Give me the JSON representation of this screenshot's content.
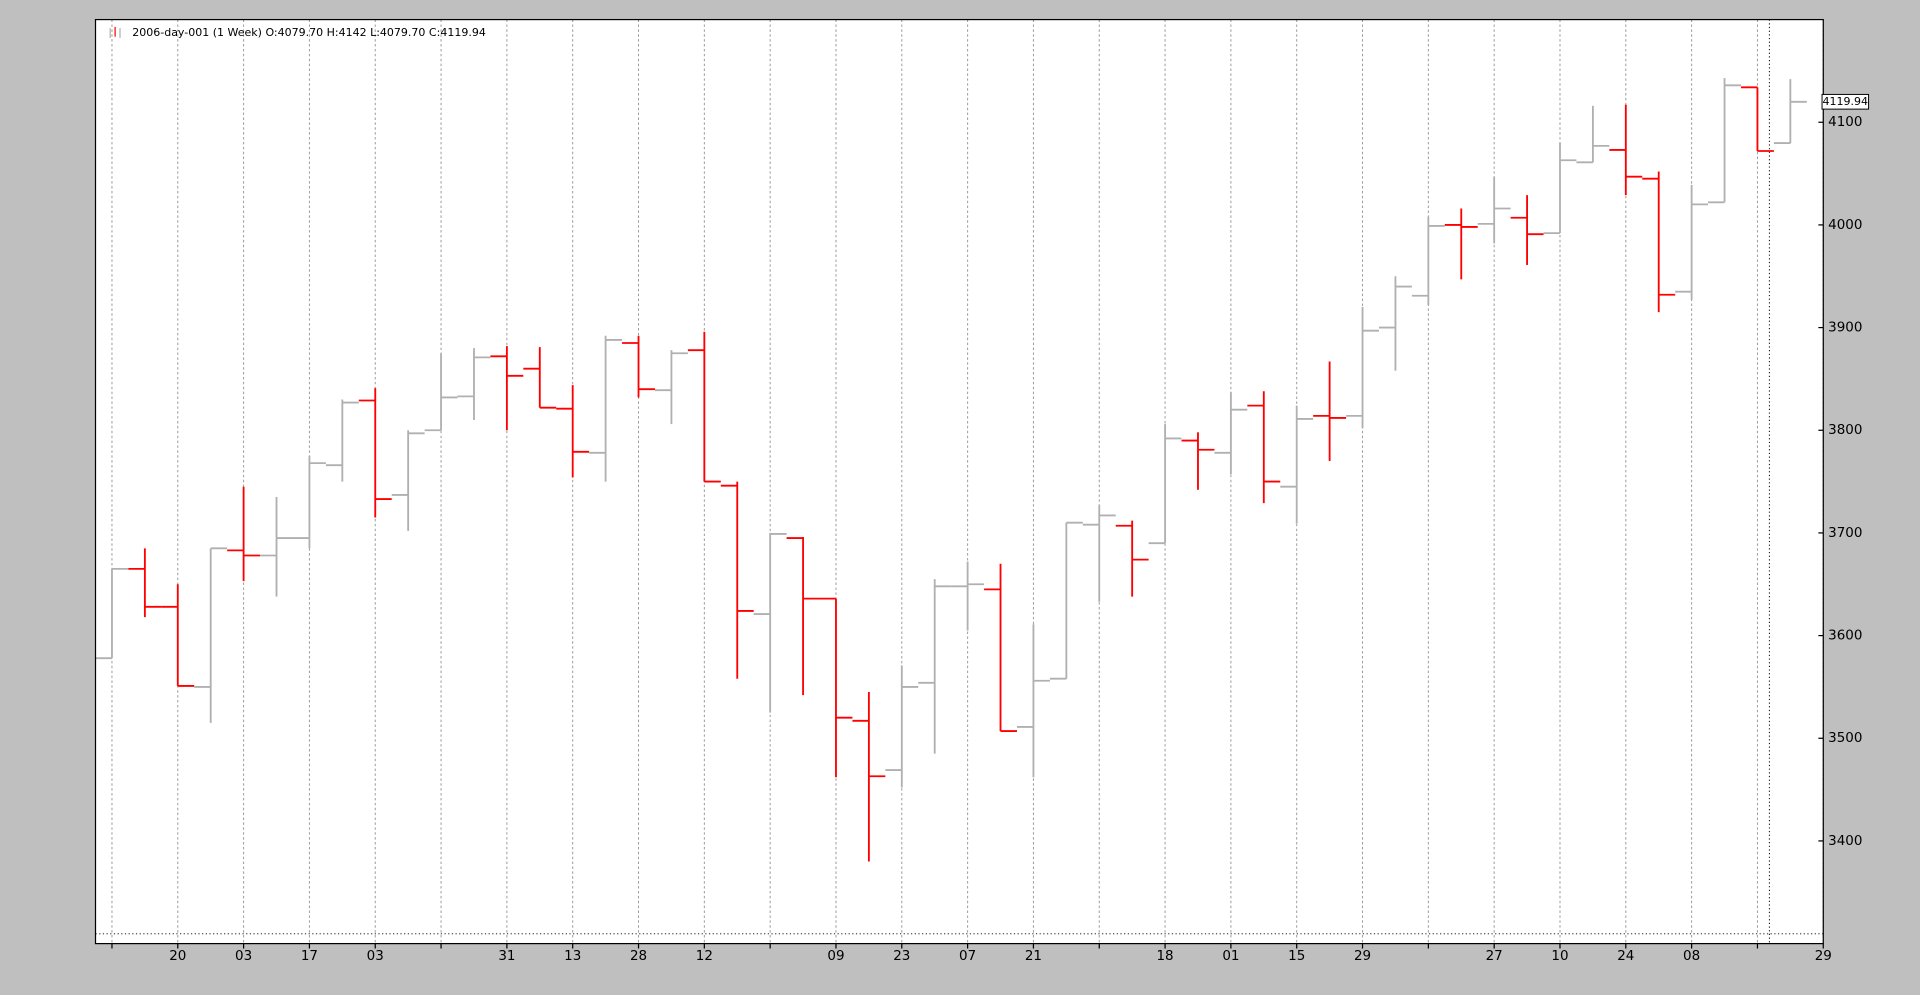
{
  "chart_data": {
    "type": "ohlc",
    "legend_text": "2006-day-001 (1 Week) O:4079.70 H:4142 L:4079.70 C:4119.94",
    "series": [
      {
        "name": "2006-day-001 (1 Week)",
        "up_color": "#b0b0b0",
        "down_color": "#ff0000",
        "open": [
          3578,
          3665,
          3628,
          3550,
          3683,
          3678,
          3695,
          3766,
          3829,
          3737,
          3800,
          3833,
          3872,
          3860,
          3821,
          3778,
          3885,
          3839,
          3878,
          3746,
          3621,
          3695,
          3636,
          3517,
          3469,
          3554,
          3648,
          3645,
          3511,
          3558,
          3708,
          3707,
          3690,
          3790,
          3778,
          3824,
          3745,
          3814,
          3814,
          3900,
          3931,
          4000,
          4001,
          4007,
          3992,
          4061,
          4073,
          4045,
          3935,
          4022,
          4134,
          4079.7
        ],
        "high": [
          3665,
          3685,
          3650,
          3685,
          3745,
          3735,
          3775,
          3830,
          3841,
          3800,
          3875,
          3880,
          3882,
          3881,
          3844,
          3892,
          3892,
          3878,
          3896,
          3750,
          3700,
          3696,
          3636,
          3545,
          3571,
          3655,
          3672,
          3670,
          3611,
          3710,
          3727,
          3712,
          3806,
          3798,
          3837,
          3838,
          3824,
          3867,
          3920,
          3950,
          4008,
          4016,
          4047,
          4029,
          4080,
          4116,
          4117,
          4052,
          4039,
          4143,
          4134,
          4142
        ],
        "low": [
          3578,
          3618,
          3551,
          3515,
          3653,
          3638,
          3685,
          3750,
          3715,
          3702,
          3800,
          3810,
          3800,
          3822,
          3754,
          3750,
          3832,
          3806,
          3750,
          3558,
          3525,
          3542,
          3462,
          3380,
          3452,
          3485,
          3605,
          3507,
          3462,
          3558,
          3633,
          3638,
          3690,
          3742,
          3757,
          3729,
          3709,
          3770,
          3802,
          3858,
          3922,
          3947,
          3982,
          3961,
          3992,
          4061,
          4029,
          3915,
          3927,
          4022,
          4072,
          4079.7
        ],
        "close": [
          3665,
          3628,
          3551,
          3685,
          3678,
          3695,
          3768,
          3827,
          3733,
          3797,
          3832,
          3871,
          3853,
          3822,
          3779,
          3888,
          3840,
          3875,
          3750,
          3624,
          3699,
          3636,
          3520,
          3463,
          3550,
          3648,
          3650,
          3507,
          3556,
          3710,
          3717,
          3674,
          3792,
          3781,
          3820,
          3750,
          3811,
          3812,
          3897,
          3940,
          3999,
          3998,
          4016,
          3991,
          4063,
          4077,
          4047,
          3932,
          4020,
          4136,
          4072,
          4119.94
        ]
      }
    ],
    "xlim": [
      -0.5,
      52
    ],
    "xticks": [
      {
        "value": 0,
        "label": null
      },
      {
        "value": 2,
        "label": "20"
      },
      {
        "value": 4,
        "label": "03"
      },
      {
        "value": 6,
        "label": "17"
      },
      {
        "value": 8,
        "label": "03"
      },
      {
        "value": 10,
        "label": null
      },
      {
        "value": 12,
        "label": "31"
      },
      {
        "value": 14,
        "label": "13"
      },
      {
        "value": 16,
        "label": "28"
      },
      {
        "value": 18,
        "label": "12"
      },
      {
        "value": 20,
        "label": null
      },
      {
        "value": 22,
        "label": "09"
      },
      {
        "value": 24,
        "label": "23"
      },
      {
        "value": 26,
        "label": "07"
      },
      {
        "value": 28,
        "label": "21"
      },
      {
        "value": 30,
        "label": null
      },
      {
        "value": 32,
        "label": "18"
      },
      {
        "value": 34,
        "label": "01"
      },
      {
        "value": 36,
        "label": "15"
      },
      {
        "value": 38,
        "label": "29"
      },
      {
        "value": 40,
        "label": null
      },
      {
        "value": 42,
        "label": "27"
      },
      {
        "value": 44,
        "label": "10"
      },
      {
        "value": 46,
        "label": "24"
      },
      {
        "value": 48,
        "label": "08"
      },
      {
        "value": 50,
        "label": null
      },
      {
        "value": 52,
        "label": "29"
      }
    ],
    "ylim": [
      3300,
      4200
    ],
    "yticks": [
      3400,
      3500,
      3600,
      3700,
      3800,
      3900,
      4000,
      4100
    ],
    "grid": "x",
    "y_axis_side": "right"
  }
}
